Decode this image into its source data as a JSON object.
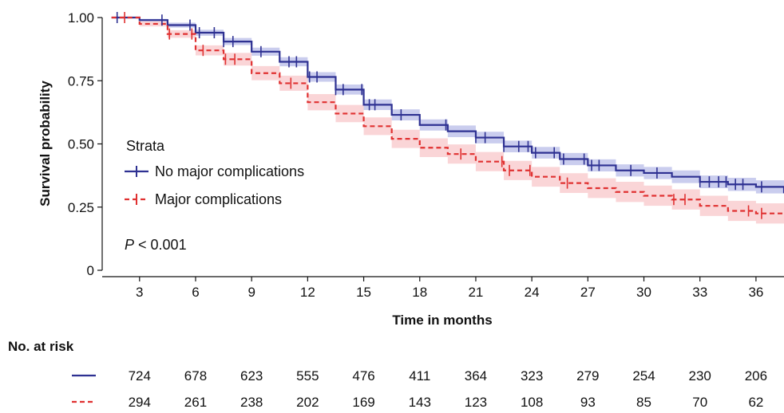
{
  "chart_data": {
    "type": "line",
    "title": "",
    "xlabel": "Time in months",
    "ylabel": "Survival probability",
    "xlim": [
      1,
      37.5
    ],
    "ylim": [
      0,
      1
    ],
    "x_ticks": [
      3,
      6,
      9,
      12,
      15,
      18,
      21,
      24,
      27,
      30,
      33,
      36
    ],
    "x_tick_labels": [
      "3",
      "6",
      "9",
      "12",
      "15",
      "18",
      "21",
      "24",
      "27",
      "30",
      "33",
      "36"
    ],
    "y_ticks": [
      0,
      0.25,
      0.5,
      0.75,
      1.0
    ],
    "y_tick_labels": [
      "0",
      "0.25",
      "0.50",
      "0.75",
      "1.00"
    ],
    "grid": false,
    "legend": {
      "title": "Strata",
      "placement": "left-center"
    },
    "annotation": {
      "p_symbol": "P",
      "p_text": " < 0.001"
    },
    "series": [
      {
        "name": "No major complications",
        "color": "#2e3192",
        "band_color": "#9fa4e0",
        "line_style": "solid",
        "x": [
          1.5,
          3,
          4.5,
          6,
          7.5,
          9,
          10.5,
          12,
          13.5,
          15,
          16.5,
          18,
          19.5,
          21,
          22.5,
          24,
          25.5,
          27,
          28.5,
          30,
          31.5,
          33,
          34.5,
          36,
          37.5
        ],
        "y": [
          1.0,
          0.99,
          0.97,
          0.94,
          0.905,
          0.865,
          0.825,
          0.765,
          0.715,
          0.655,
          0.615,
          0.575,
          0.55,
          0.525,
          0.49,
          0.465,
          0.44,
          0.415,
          0.395,
          0.385,
          0.37,
          0.35,
          0.34,
          0.33,
          0.305
        ],
        "ci_halfwidth": [
          0.0,
          0.005,
          0.01,
          0.012,
          0.014,
          0.016,
          0.018,
          0.019,
          0.02,
          0.021,
          0.022,
          0.022,
          0.023,
          0.023,
          0.023,
          0.023,
          0.024,
          0.024,
          0.024,
          0.024,
          0.025,
          0.025,
          0.026,
          0.026,
          0.027
        ],
        "censor_x": [
          1.8,
          4.2,
          5.7,
          6.2,
          7.0,
          7.5,
          8.0,
          9.5,
          11.0,
          11.4,
          12.1,
          12.5,
          13.5,
          13.9,
          14.9,
          15.3,
          15.6,
          17.0,
          19.4,
          21.0,
          21.5,
          22.5,
          23.3,
          23.8,
          24.2,
          25.2,
          25.7,
          26.8,
          27.2,
          27.6,
          29.3,
          30.7,
          33.0,
          33.5,
          34.0,
          34.4,
          34.9,
          35.3,
          36.3
        ]
      },
      {
        "name": "Major complications",
        "color": "#e03131",
        "band_color": "#f6b3b6",
        "line_style": "dashed",
        "x": [
          1.5,
          3,
          4.5,
          6,
          7.5,
          9,
          10.5,
          12,
          13.5,
          15,
          16.5,
          18,
          19.5,
          21,
          22.5,
          24,
          25.5,
          27,
          28.5,
          30,
          31.5,
          33,
          34.5,
          36,
          37.5
        ],
        "y": [
          1.0,
          0.975,
          0.935,
          0.87,
          0.835,
          0.78,
          0.74,
          0.665,
          0.62,
          0.57,
          0.52,
          0.485,
          0.46,
          0.43,
          0.395,
          0.37,
          0.345,
          0.325,
          0.31,
          0.295,
          0.28,
          0.255,
          0.235,
          0.225,
          0.22
        ],
        "ci_halfwidth": [
          0.0,
          0.01,
          0.015,
          0.02,
          0.025,
          0.028,
          0.03,
          0.032,
          0.034,
          0.035,
          0.036,
          0.037,
          0.038,
          0.038,
          0.038,
          0.039,
          0.039,
          0.039,
          0.04,
          0.04,
          0.04,
          0.04,
          0.04,
          0.04,
          0.04
        ]
      }
    ],
    "censor_major_x": [
      2.2,
      4.6,
      5.8,
      6.4,
      7.6,
      8.1,
      11.1,
      20.2,
      22.4,
      22.8,
      23.9,
      25.9,
      31.6,
      32.2,
      35.6,
      36.3
    ]
  },
  "risk_table": {
    "title": "No. at risk",
    "rows": [
      {
        "line_style": "solid",
        "color": "#2e3192",
        "values": [
          "724",
          "678",
          "623",
          "555",
          "476",
          "411",
          "364",
          "323",
          "279",
          "254",
          "230",
          "206"
        ]
      },
      {
        "line_style": "dashed",
        "color": "#e03131",
        "values": [
          "294",
          "261",
          "238",
          "202",
          "169",
          "143",
          "123",
          "108",
          "93",
          "85",
          "70",
          "62"
        ]
      }
    ]
  }
}
